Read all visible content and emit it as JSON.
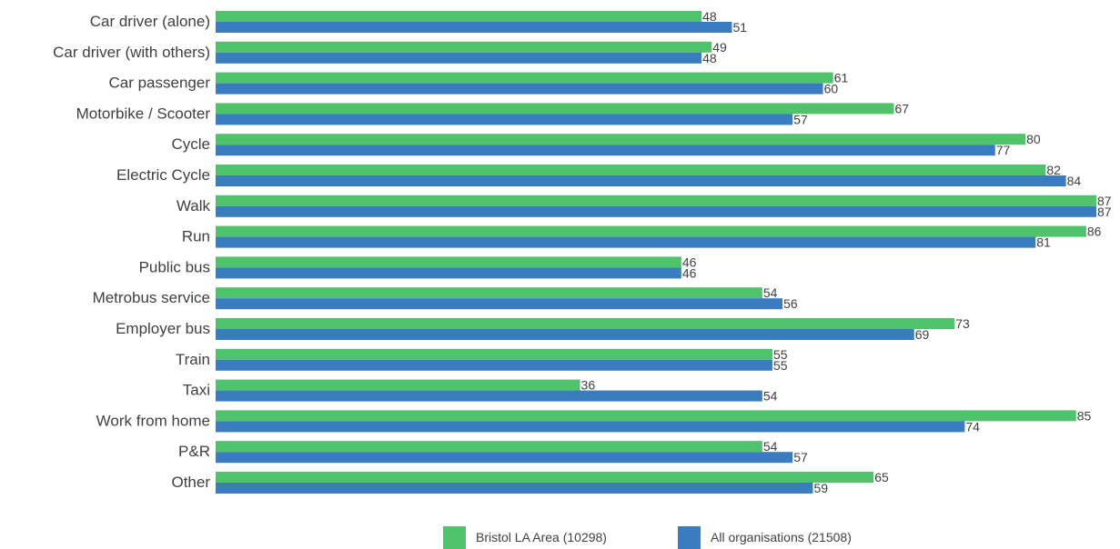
{
  "chart_data": {
    "type": "bar",
    "orientation": "horizontal",
    "categories": [
      "Car driver (alone)",
      "Car driver (with others)",
      "Car passenger",
      "Motorbike / Scooter",
      "Cycle",
      "Electric Cycle",
      "Walk",
      "Run",
      "Public bus",
      "Metrobus service",
      "Employer bus",
      "Train",
      "Taxi",
      "Work from home",
      "P&R",
      "Other"
    ],
    "series": [
      {
        "name": "Bristol LA Area (10298)",
        "color": "#4fc36b",
        "values": [
          48,
          49,
          61,
          67,
          80,
          82,
          87,
          86,
          46,
          54,
          73,
          55,
          36,
          85,
          54,
          65
        ]
      },
      {
        "name": "All organisations (21508)",
        "color": "#3a7cc0",
        "values": [
          51,
          48,
          60,
          57,
          77,
          84,
          87,
          81,
          46,
          56,
          69,
          55,
          54,
          74,
          57,
          59
        ]
      }
    ],
    "xlim": [
      0,
      87
    ],
    "grid": false,
    "data_labels": true,
    "legend_position": "bottom"
  }
}
